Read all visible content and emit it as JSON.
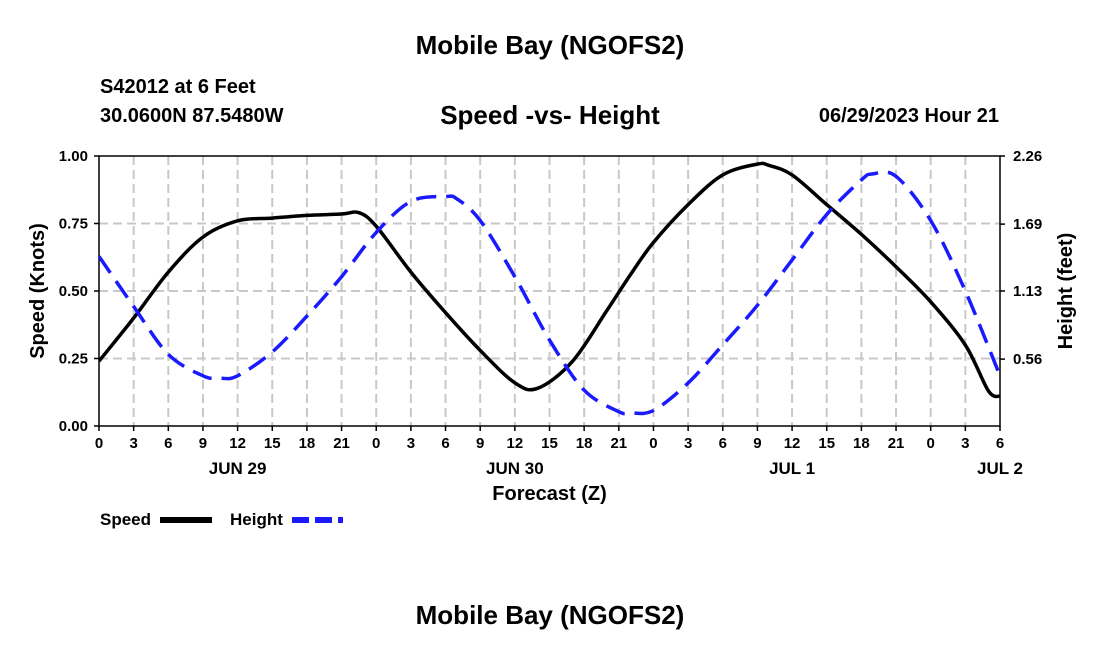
{
  "header": {
    "title": "Mobile Bay (NGOFS2)",
    "station": "S42012 at 6 Feet",
    "coords": "30.0600N  87.5480W",
    "subtitle": "Speed -vs- Height",
    "datetime": "06/29/2023 Hour 21"
  },
  "footer": {
    "title": "Mobile Bay (NGOFS2)"
  },
  "chart_data": {
    "type": "line",
    "xlabel": "Forecast (Z)",
    "x_ticks": [
      "0",
      "3",
      "6",
      "9",
      "12",
      "15",
      "18",
      "21",
      "0",
      "3",
      "6",
      "9",
      "12",
      "15",
      "18",
      "21",
      "0",
      "3",
      "6",
      "9",
      "12",
      "15",
      "18",
      "21",
      "0",
      "3",
      "6"
    ],
    "day_labels": [
      {
        "label": "JUN 29",
        "hour": 12
      },
      {
        "label": "JUN 30",
        "hour": 36
      },
      {
        "label": "JUL 1",
        "hour": 60
      },
      {
        "label": "JUL 2",
        "hour": 78
      }
    ],
    "xlim": [
      0,
      78
    ],
    "y_left": {
      "label": "Speed (Knots)",
      "ticks": [
        "0.00",
        "0.25",
        "0.50",
        "0.75",
        "1.00"
      ],
      "lim": [
        0,
        1
      ]
    },
    "y_right": {
      "label": "Height (feet)",
      "ticks": [
        "0.56",
        "1.13",
        "1.69",
        "2.26"
      ],
      "lim": [
        0,
        2.26
      ]
    },
    "grid": true,
    "legend_position": "bottom-left",
    "series": [
      {
        "name": "Speed",
        "axis": "left",
        "color": "#000000",
        "dash": "solid",
        "x": [
          0,
          3,
          6,
          9,
          12,
          15,
          18,
          21,
          22.5,
          24,
          27,
          30,
          33,
          36,
          38,
          41,
          44,
          46,
          48,
          51,
          54,
          57,
          58,
          60,
          63,
          66,
          69,
          72,
          75,
          77,
          78
        ],
        "y": [
          0.24,
          0.4,
          0.57,
          0.7,
          0.76,
          0.77,
          0.78,
          0.785,
          0.79,
          0.74,
          0.57,
          0.42,
          0.28,
          0.16,
          0.14,
          0.24,
          0.43,
          0.56,
          0.68,
          0.82,
          0.93,
          0.97,
          0.965,
          0.93,
          0.82,
          0.71,
          0.59,
          0.46,
          0.3,
          0.13,
          0.11
        ]
      },
      {
        "name": "Height",
        "axis": "right",
        "color": "#1a1aff",
        "dash": "dashed",
        "x": [
          0,
          3,
          6,
          9,
          10.5,
          12,
          15,
          18,
          21,
          24,
          27,
          30,
          31,
          33,
          36,
          39,
          42,
          45,
          46,
          48,
          51,
          54,
          57,
          60,
          63,
          66,
          67,
          69,
          72,
          75,
          78
        ],
        "y": [
          1.42,
          1.0,
          0.6,
          0.42,
          0.4,
          0.42,
          0.62,
          0.92,
          1.25,
          1.62,
          1.88,
          1.92,
          1.9,
          1.72,
          1.25,
          0.72,
          0.3,
          0.12,
          0.11,
          0.13,
          0.36,
          0.68,
          1.01,
          1.39,
          1.77,
          2.06,
          2.11,
          2.09,
          1.72,
          1.13,
          0.42
        ]
      }
    ]
  },
  "legend": [
    {
      "label": "Speed",
      "color": "#000000",
      "dash": "solid"
    },
    {
      "label": "Height",
      "color": "#1a1aff",
      "dash": "dashed"
    }
  ]
}
